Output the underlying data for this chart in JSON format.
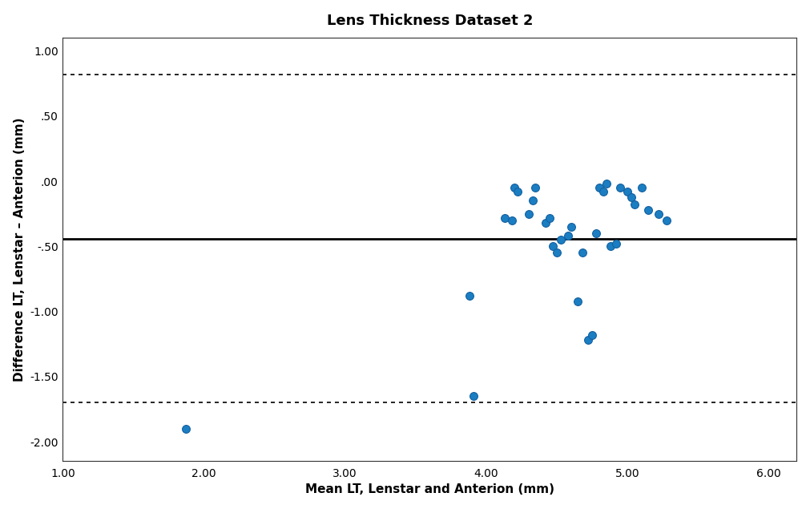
{
  "title": "Lens Thickness Dataset 2",
  "xlabel": "Mean LT, Lenstar and Anterion (mm)",
  "ylabel": "Difference LT, Lenstar – Anterion (mm)",
  "mean_diff": -0.44,
  "upper_loa": 0.82,
  "lower_loa": -1.7,
  "xlim": [
    1.0,
    6.2
  ],
  "ylim": [
    -2.15,
    1.1
  ],
  "xticks": [
    1.0,
    2.0,
    3.0,
    4.0,
    5.0,
    6.0
  ],
  "yticks": [
    1.0,
    0.5,
    0.0,
    -0.5,
    -1.0,
    -1.5,
    -2.0
  ],
  "ytick_labels": [
    "1.00",
    ".50",
    ".00",
    "-.50",
    "-1.00",
    "-1.50",
    "-2.00"
  ],
  "xtick_labels": [
    "1.00",
    "2.00",
    "3.00",
    "4.00",
    "5.00",
    "6.00"
  ],
  "point_color": "#1B7EC2",
  "point_edge_color": "#1460A0",
  "scatter_x": [
    1.87,
    3.88,
    3.91,
    4.13,
    4.18,
    4.2,
    4.22,
    4.3,
    4.33,
    4.35,
    4.42,
    4.45,
    4.47,
    4.5,
    4.53,
    4.58,
    4.6,
    4.65,
    4.68,
    4.72,
    4.75,
    4.78,
    4.8,
    4.83,
    4.85,
    4.88,
    4.92,
    4.95,
    5.0,
    5.03,
    5.05,
    5.1,
    5.15,
    5.22,
    5.28
  ],
  "scatter_y": [
    -1.9,
    -0.88,
    -1.65,
    -0.28,
    -0.3,
    -0.05,
    -0.08,
    -0.25,
    -0.15,
    -0.05,
    -0.32,
    -0.28,
    -0.5,
    -0.55,
    -0.45,
    -0.42,
    -0.35,
    -0.92,
    -0.55,
    -1.22,
    -1.18,
    -0.4,
    -0.05,
    -0.08,
    -0.02,
    -0.5,
    -0.48,
    -0.05,
    -0.08,
    -0.12,
    -0.18,
    -0.05,
    -0.22,
    -0.25,
    -0.3
  ],
  "background_color": "#ffffff",
  "line_color": "#000000",
  "title_fontsize": 13,
  "label_fontsize": 11,
  "tick_fontsize": 10
}
